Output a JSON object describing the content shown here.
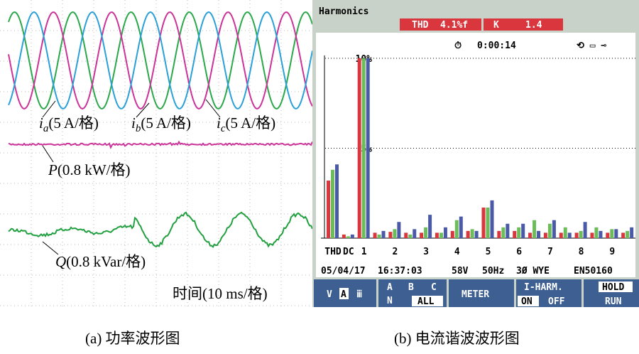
{
  "panel_a": {
    "labels": [
      {
        "symbol": "i",
        "sub": "a",
        "unit": "(5 A/格)"
      },
      {
        "symbol": "i",
        "sub": "b",
        "unit": "(5 A/格)"
      },
      {
        "symbol": "i",
        "sub": "c",
        "unit": "(5 A/格)"
      }
    ],
    "power": {
      "symbol": "P",
      "unit": "(0.8 kW/格)"
    },
    "reactive": {
      "symbol": "Q",
      "unit": "(0.8 kVar/格)"
    },
    "time_scale": "时间(10 ms/格)"
  },
  "panel_b": {
    "title": "Harmonics",
    "thd_label": "THD",
    "thd_value": "4.1%f",
    "k_label": "K",
    "k_value": "1.4",
    "timer": "0:00:14",
    "info": [
      "05/04/17",
      "16:37:03",
      "58V",
      "50Hz",
      "3Ø WYE",
      "EN50160"
    ],
    "buttons": [
      [
        "V",
        "A",
        "ⅲ"
      ],
      [
        "N",
        "ALL"
      ],
      [
        "METER"
      ],
      [
        "I-HARM.",
        "ON",
        "OFF"
      ],
      [
        "HOLD",
        "RUN"
      ]
    ]
  },
  "chart_data": {
    "type": "bar",
    "categories": [
      "THD",
      "DC",
      "1",
      null,
      "2",
      null,
      "3",
      null,
      "4",
      null,
      "5",
      null,
      "6",
      null,
      "7",
      null,
      "8",
      null,
      "9",
      null
    ],
    "series": [
      {
        "name": "A",
        "color": "#d9363e",
        "values": [
          3.2,
          0.2,
          10,
          0.3,
          0.35,
          0.3,
          0.3,
          0.3,
          0.4,
          0.4,
          1.7,
          0.4,
          0.4,
          0.3,
          0.3,
          0.3,
          0.3,
          0.3,
          0.3,
          0.3
        ]
      },
      {
        "name": "B",
        "color": "#6cbd5a",
        "values": [
          3.8,
          0.1,
          10,
          0.2,
          0.5,
          0.2,
          0.6,
          0.3,
          1.0,
          0.5,
          1.7,
          0.6,
          0.6,
          1.0,
          0.8,
          0.6,
          0.4,
          0.6,
          0.5,
          0.4
        ]
      },
      {
        "name": "C",
        "color": "#4a5aa8",
        "values": [
          4.1,
          0.2,
          10,
          0.4,
          0.9,
          0.5,
          1.3,
          0.6,
          1.2,
          0.4,
          2.1,
          0.8,
          0.8,
          0.4,
          1.0,
          0.3,
          0.9,
          0.4,
          0.5,
          0.6
        ]
      }
    ],
    "ylim": [
      0,
      10
    ],
    "yticks": [
      {
        "value": 5,
        "label": "5%"
      },
      {
        "value": 10,
        "label": "10%"
      }
    ],
    "grid": true
  },
  "captions": [
    "(a) 功率波形图",
    "(b) 电流谐波波形图"
  ]
}
